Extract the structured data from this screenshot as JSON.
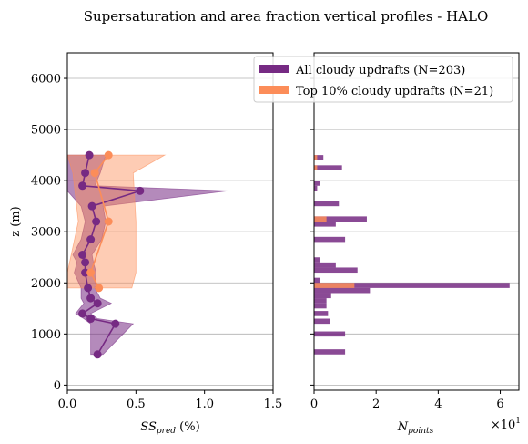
{
  "chart_data": {
    "title": "Supersaturation and area fraction vertical profiles - HALO",
    "legend": {
      "placement": "top-right",
      "entries": [
        {
          "label": "All cloudy updrafts (N=203)",
          "color": "#762a83"
        },
        {
          "label": "Top 10% cloudy updrafts (N=21)",
          "color": "#fc8d59"
        }
      ]
    },
    "colors": {
      "all": "#762a83",
      "top": "#fc8d59"
    },
    "panels": [
      {
        "type": "line",
        "xlabel_main": "SS",
        "xlabel_sub": "pred",
        "xlabel_unit": " (%)",
        "ylabel": "z (m)",
        "xlim": [
          0,
          1.5
        ],
        "ylim": [
          -100,
          6500
        ],
        "xticks": [
          0.0,
          0.5,
          1.0,
          1.5
        ],
        "xtick_labels": [
          "0.0",
          "0.5",
          "1.0",
          "1.5"
        ],
        "yticks": [
          0,
          1000,
          2000,
          3000,
          4000,
          5000,
          6000
        ],
        "ytick_labels": [
          "0",
          "1000",
          "2000",
          "3000",
          "4000",
          "5000",
          "6000"
        ],
        "grid": "y",
        "series": [
          {
            "key": "all",
            "points": [
              {
                "z": 600,
                "x": 0.22,
                "lo": 0.17,
                "hi": 0.26
              },
              {
                "z": 1200,
                "x": 0.35,
                "lo": 0.17,
                "hi": 0.48
              },
              {
                "z": 1300,
                "x": 0.17,
                "lo": 0.12,
                "hi": 0.22
              },
              {
                "z": 1400,
                "x": 0.11,
                "lo": 0.06,
                "hi": 0.17
              },
              {
                "z": 1600,
                "x": 0.22,
                "lo": 0.12,
                "hi": 0.32
              },
              {
                "z": 1700,
                "x": 0.17,
                "lo": 0.1,
                "hi": 0.24
              },
              {
                "z": 1900,
                "x": 0.15,
                "lo": 0.1,
                "hi": 0.2
              },
              {
                "z": 2200,
                "x": 0.13,
                "lo": 0.05,
                "hi": 0.21
              },
              {
                "z": 2400,
                "x": 0.13,
                "lo": 0.07,
                "hi": 0.19
              },
              {
                "z": 2550,
                "x": 0.11,
                "lo": 0.04,
                "hi": 0.18
              },
              {
                "z": 2850,
                "x": 0.17,
                "lo": 0.1,
                "hi": 0.25
              },
              {
                "z": 3200,
                "x": 0.21,
                "lo": 0.13,
                "hi": 0.28
              },
              {
                "z": 3500,
                "x": 0.18,
                "lo": 0.1,
                "hi": 0.26
              },
              {
                "z": 3800,
                "x": 0.53,
                "lo": 0.0,
                "hi": 1.17
              },
              {
                "z": 3900,
                "x": 0.11,
                "lo": 0.0,
                "hi": 0.2
              },
              {
                "z": 4150,
                "x": 0.13,
                "lo": 0.0,
                "hi": 0.24
              },
              {
                "z": 4500,
                "x": 0.16,
                "lo": 0.0,
                "hi": 0.28
              }
            ]
          },
          {
            "key": "top",
            "points": [
              {
                "z": 1900,
                "x": 0.23,
                "lo": 0.0,
                "hi": 0.47
              },
              {
                "z": 2200,
                "x": 0.17,
                "lo": 0.0,
                "hi": 0.5
              },
              {
                "z": 3200,
                "x": 0.3,
                "lo": 0.08,
                "hi": 0.5
              },
              {
                "z": 4150,
                "x": 0.2,
                "lo": 0.04,
                "hi": 0.48
              },
              {
                "z": 4500,
                "x": 0.3,
                "lo": 0.0,
                "hi": 0.71
              }
            ]
          }
        ]
      },
      {
        "type": "bar",
        "orientation": "horizontal",
        "xlabel_main": "N",
        "xlabel_sub": "points",
        "offset_label": "×10",
        "offset_exp": "1",
        "xlim": [
          0,
          6.6
        ],
        "ylim": [
          -100,
          6500
        ],
        "xticks": [
          0,
          2,
          4,
          6
        ],
        "xtick_labels": [
          "0",
          "2",
          "4",
          "6"
        ],
        "grid": "y",
        "bin_height": 100,
        "bars_all": [
          {
            "z": 650,
            "n": 1.0
          },
          {
            "z": 1000,
            "n": 1.0
          },
          {
            "z": 1250,
            "n": 0.5
          },
          {
            "z": 1400,
            "n": 0.45
          },
          {
            "z": 1550,
            "n": 0.4
          },
          {
            "z": 1650,
            "n": 0.4
          },
          {
            "z": 1750,
            "n": 0.55
          },
          {
            "z": 1850,
            "n": 1.8
          },
          {
            "z": 1950,
            "n": 6.3
          },
          {
            "z": 2050,
            "n": 0.2
          },
          {
            "z": 2250,
            "n": 1.4
          },
          {
            "z": 2350,
            "n": 0.7
          },
          {
            "z": 2450,
            "n": 0.2
          },
          {
            "z": 2850,
            "n": 1.0
          },
          {
            "z": 3150,
            "n": 0.7
          },
          {
            "z": 3250,
            "n": 1.7
          },
          {
            "z": 3550,
            "n": 0.8
          },
          {
            "z": 3850,
            "n": 0.1
          },
          {
            "z": 3950,
            "n": 0.2
          },
          {
            "z": 4250,
            "n": 0.9
          },
          {
            "z": 4450,
            "n": 0.3
          }
        ],
        "bars_top": [
          {
            "z": 1950,
            "n": 1.3
          },
          {
            "z": 3250,
            "n": 0.4
          },
          {
            "z": 4250,
            "n": 0.1
          },
          {
            "z": 4450,
            "n": 0.1
          }
        ]
      }
    ]
  }
}
